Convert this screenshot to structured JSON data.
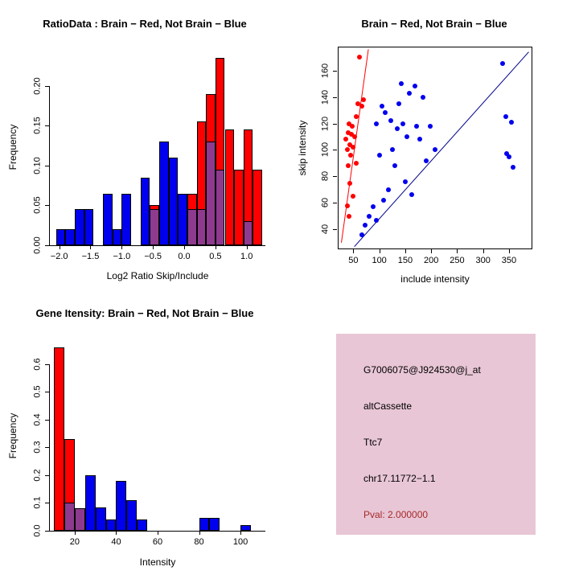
{
  "chart_data": [
    {
      "type": "bar",
      "id": "ratio-histogram",
      "title": "RatioData : Brain − Red, Not Brain − Blue",
      "xlabel": "Log2 Ratio Skip/Include",
      "ylabel": "Frequency",
      "xlim": [
        -2.15,
        1.3
      ],
      "ylim": [
        0,
        0.245
      ],
      "xticks": [
        -2.0,
        -1.5,
        -1.0,
        -0.5,
        0.0,
        0.5,
        1.0
      ],
      "xtick_labels": [
        "−2.0",
        "−1.5",
        "−1.0",
        "−0.5",
        "0.0",
        "0.5",
        "1.0"
      ],
      "yticks": [
        0,
        0.05,
        0.1,
        0.15,
        0.2
      ],
      "ytick_labels": [
        "0.00",
        "0.05",
        "0.10",
        "0.15",
        "0.20"
      ],
      "bin_width": 0.15,
      "grid": false,
      "series": [
        {
          "name": "Not Brain",
          "color": "#0000EE",
          "bars": [
            [
              -2.05,
              0.02
            ],
            [
              -1.9,
              0.02
            ],
            [
              -1.75,
              0.045
            ],
            [
              -1.6,
              0.045
            ],
            [
              -1.3,
              0.065
            ],
            [
              -1.15,
              0.02
            ],
            [
              -1.0,
              0.065
            ],
            [
              -0.7,
              0.085
            ],
            [
              -0.55,
              0.045
            ],
            [
              -0.4,
              0.13
            ],
            [
              -0.25,
              0.11
            ],
            [
              -0.1,
              0.065
            ],
            [
              0.05,
              0.045
            ],
            [
              0.2,
              0.045
            ],
            [
              0.35,
              0.13
            ],
            [
              0.5,
              0.095
            ],
            [
              0.95,
              0.03
            ]
          ]
        },
        {
          "name": "Brain",
          "color": "#FF0000",
          "bars": [
            [
              -0.55,
              0.05
            ],
            [
              0.05,
              0.065
            ],
            [
              0.2,
              0.155
            ],
            [
              0.35,
              0.19
            ],
            [
              0.5,
              0.235
            ],
            [
              0.65,
              0.145
            ],
            [
              0.8,
              0.095
            ],
            [
              0.95,
              0.145
            ],
            [
              1.1,
              0.095
            ]
          ]
        },
        {
          "name": "Overlap",
          "color": "#8E3A8E",
          "bars": [
            [
              -0.55,
              0.045
            ],
            [
              0.05,
              0.045
            ],
            [
              0.2,
              0.045
            ],
            [
              0.35,
              0.13
            ],
            [
              0.5,
              0.095
            ],
            [
              0.95,
              0.03
            ]
          ]
        }
      ]
    },
    {
      "type": "scatter",
      "id": "intensity-scatter",
      "title": "Brain − Red, Not Brain − Blue",
      "xlabel": "include intensity",
      "ylabel": "skip intensity",
      "xlim": [
        20,
        395
      ],
      "ylim": [
        25,
        178
      ],
      "xticks": [
        50,
        100,
        150,
        200,
        250,
        300,
        350
      ],
      "xtick_labels": [
        "50",
        "100",
        "150",
        "200",
        "250",
        "300",
        "350"
      ],
      "yticks": [
        40,
        60,
        80,
        100,
        120,
        140,
        160
      ],
      "ytick_labels": [
        "40",
        "60",
        "80",
        "100",
        "120",
        "140",
        "160"
      ],
      "grid": false,
      "series": [
        {
          "name": "Brain",
          "color": "#FF0000",
          "line_color": "#FF0000",
          "line": {
            "from": [
              27,
              30
            ],
            "to": [
              79,
              176
            ]
          },
          "points": [
            [
              35,
              108
            ],
            [
              38,
              100
            ],
            [
              40,
              113
            ],
            [
              42,
              120
            ],
            [
              44,
              104
            ],
            [
              45,
              96
            ],
            [
              46,
              112
            ],
            [
              48,
              118
            ],
            [
              50,
              102
            ],
            [
              52,
              110
            ],
            [
              55,
              125
            ],
            [
              58,
              135
            ],
            [
              62,
              170
            ],
            [
              66,
              133
            ],
            [
              70,
              138
            ],
            [
              40,
              88
            ],
            [
              44,
              75
            ],
            [
              38,
              58
            ],
            [
              42,
              50
            ],
            [
              50,
              65
            ],
            [
              56,
              90
            ]
          ]
        },
        {
          "name": "Not Brain",
          "color": "#0000EE",
          "line_color": "#00008B",
          "line": {
            "from": [
              52,
              27
            ],
            "to": [
              388,
              174
            ]
          },
          "points": [
            [
              95,
              120
            ],
            [
              100,
              96
            ],
            [
              105,
              133
            ],
            [
              108,
              62
            ],
            [
              112,
              128
            ],
            [
              118,
              70
            ],
            [
              122,
              122
            ],
            [
              126,
              100
            ],
            [
              130,
              88
            ],
            [
              134,
              116
            ],
            [
              138,
              135
            ],
            [
              142,
              150
            ],
            [
              146,
              120
            ],
            [
              150,
              76
            ],
            [
              154,
              110
            ],
            [
              158,
              143
            ],
            [
              163,
              66
            ],
            [
              168,
              148
            ],
            [
              172,
              118
            ],
            [
              178,
              108
            ],
            [
              184,
              140
            ],
            [
              190,
              92
            ],
            [
              198,
              118
            ],
            [
              208,
              100
            ],
            [
              66,
              36
            ],
            [
              72,
              43
            ],
            [
              80,
              50
            ],
            [
              88,
              57
            ],
            [
              95,
              47
            ],
            [
              338,
              165
            ],
            [
              344,
              125
            ],
            [
              350,
              95
            ],
            [
              354,
              121
            ],
            [
              358,
              87
            ],
            [
              346,
              97
            ]
          ]
        }
      ]
    },
    {
      "type": "bar",
      "id": "gene-intensity-histogram",
      "title": "Gene Itensity: Brain − Red, Not Brain − Blue",
      "xlabel": "Intensity",
      "ylabel": "Frequency",
      "xlim": [
        8,
        112
      ],
      "ylim": [
        0,
        0.68
      ],
      "xticks": [
        20,
        40,
        60,
        80,
        100
      ],
      "xtick_labels": [
        "20",
        "40",
        "60",
        "80",
        "100"
      ],
      "yticks": [
        0,
        0.1,
        0.2,
        0.3,
        0.4,
        0.5,
        0.6
      ],
      "ytick_labels": [
        "0.0",
        "0.1",
        "0.2",
        "0.3",
        "0.4",
        "0.5",
        "0.6"
      ],
      "bin_width": 5,
      "grid": false,
      "series": [
        {
          "name": "Not Brain",
          "color": "#0000EE",
          "bars": [
            [
              15,
              0.1
            ],
            [
              20,
              0.08
            ],
            [
              25,
              0.2
            ],
            [
              30,
              0.085
            ],
            [
              35,
              0.04
            ],
            [
              40,
              0.18
            ],
            [
              45,
              0.11
            ],
            [
              50,
              0.04
            ],
            [
              80,
              0.045
            ],
            [
              85,
              0.045
            ],
            [
              100,
              0.02
            ]
          ]
        },
        {
          "name": "Brain",
          "color": "#FF0000",
          "bars": [
            [
              10,
              0.66
            ],
            [
              15,
              0.33
            ]
          ]
        },
        {
          "name": "Overlap",
          "color": "#8E3A8E",
          "bars": [
            [
              15,
              0.1
            ],
            [
              20,
              0.08
            ]
          ]
        }
      ]
    }
  ],
  "info_box": {
    "bg": "#E8C6D5",
    "lines": [
      {
        "text": "G7006075@J924530@j_at",
        "color": "#000000"
      },
      {
        "text": "altCassette",
        "color": "#000000"
      },
      {
        "text": "Ttc7",
        "color": "#000000"
      },
      {
        "text": "chr17.11772−1.1",
        "color": "#000000"
      },
      {
        "text": "Pval: 2.000000",
        "color": "#A52A2A"
      }
    ]
  }
}
